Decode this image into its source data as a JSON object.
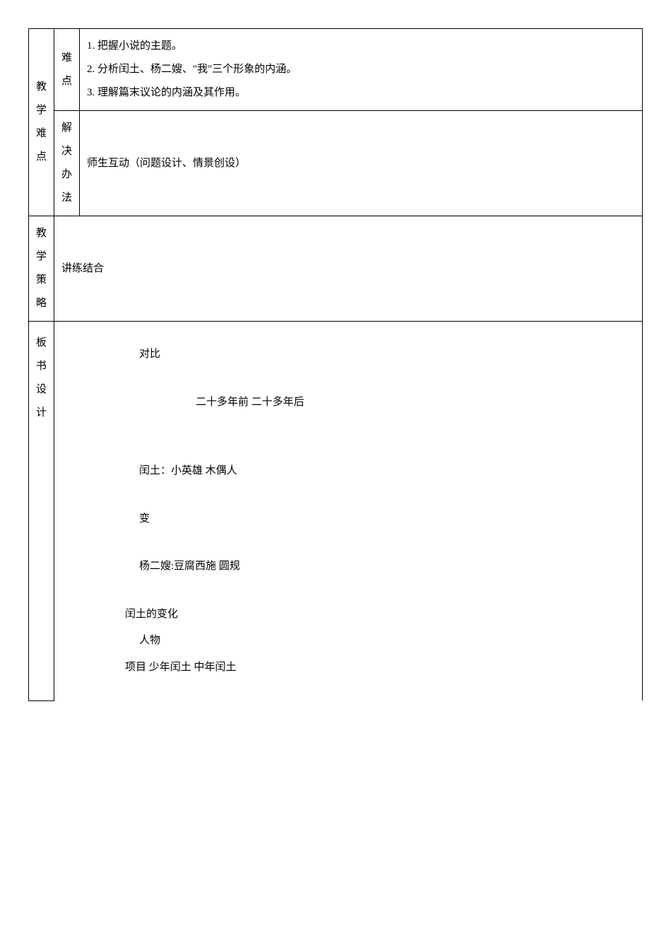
{
  "section1": {
    "leftLabel": "教\n学\n难\n点",
    "row1": {
      "label": "难\n点",
      "content": [
        "1.  把握小说的主题。",
        "2.  分析闰土、杨二嫂、\"我\"三个形象的内涵。",
        "3.  理解篇末议论的内涵及其作用。"
      ]
    },
    "row2": {
      "label": "解\n决\n办\n法",
      "content": "师生互动（问题设计、情景创设）"
    }
  },
  "section2": {
    "leftLabel": "教\n学\n策\n略",
    "content": "讲练结合"
  },
  "section3": {
    "leftLabel": "板\n书\n设\n计",
    "lines": {
      "duibi": "对比",
      "timeline": "二十多年前      二十多年后",
      "runtu": "闰土：小英雄           木偶人",
      "bian": "变",
      "yang": "杨二嫂:豆腐西施            圆规",
      "runtuChange": "闰土的变化",
      "renwu": "人物",
      "xiangmu": "项目  少年闰土  中年闰土"
    }
  },
  "style": {
    "borderColor": "#000000",
    "background": "#ffffff",
    "fontSize": 15,
    "fontFamily": "SimSun",
    "lineHeight": 2.2,
    "tableWidth": 870,
    "pagePadding": 40
  }
}
